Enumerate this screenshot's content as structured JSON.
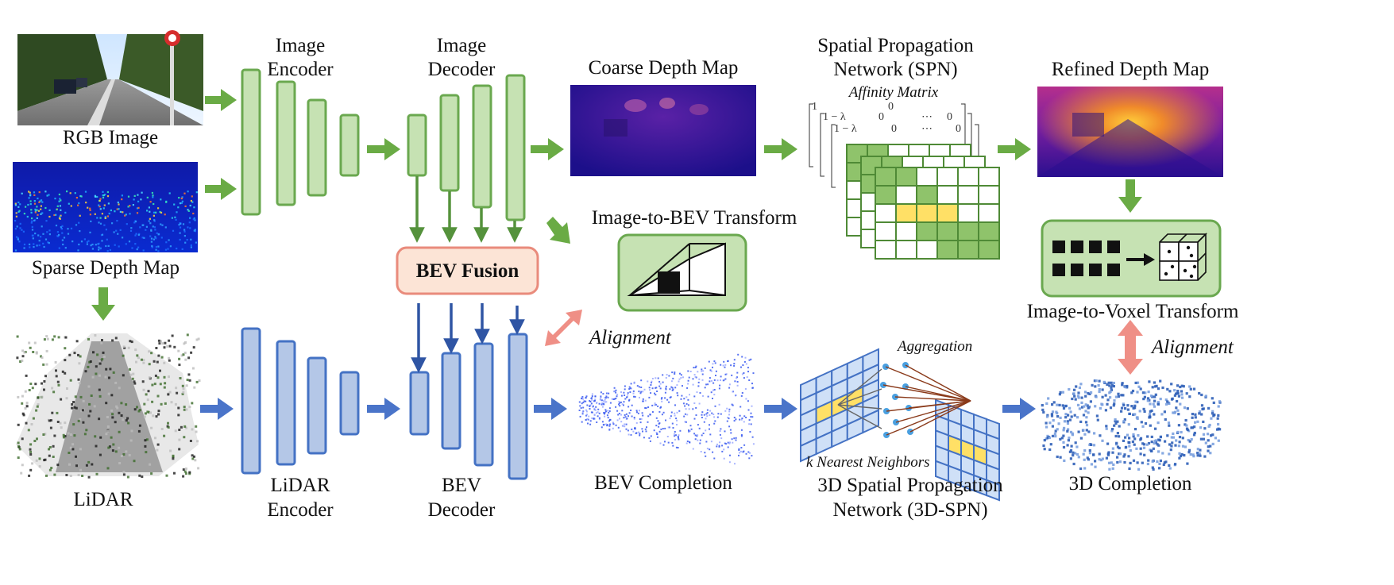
{
  "labels": {
    "rgb_image": "RGB Image",
    "sparse_depth_map": "Sparse Depth Map",
    "lidar": "LiDAR",
    "image_encoder": [
      "Image",
      "Encoder"
    ],
    "image_decoder": [
      "Image",
      "Decoder"
    ],
    "lidar_encoder": [
      "LiDAR",
      "Encoder"
    ],
    "bev_decoder": [
      "BEV",
      "Decoder"
    ],
    "bev_fusion": "BEV Fusion",
    "coarse_depth_map": "Coarse Depth Map",
    "spn": [
      "Spatial Propagation",
      "Network (SPN)"
    ],
    "affinity_matrix": "Affinity Matrix",
    "refined_depth_map": "Refined Depth Map",
    "image_to_bev": "Image-to-BEV Transform",
    "image_to_voxel": "Image-to-Voxel Transform",
    "alignment_left": "Alignment",
    "alignment_right": "Alignment",
    "bev_completion": "BEV Completion",
    "aggregation": "Aggregation",
    "knn": "k Nearest Neighbors",
    "spn3d": [
      "3D Spatial Propagation",
      "Network (3D-SPN)"
    ],
    "completion_3d": "3D Completion"
  },
  "matrix_entries": {
    "row1_a": "1",
    "row1_b": "1 − λ",
    "zero": "0",
    "dots": "⋯"
  },
  "colors": {
    "green_fill": "#c6e2b3",
    "green_stroke": "#6aa84f",
    "green_arrow": "#6aab45",
    "blue_fill": "#b4c7e7",
    "blue_stroke": "#4472c4",
    "blue_arrow": "#4a74c9",
    "dark_blue_arrow": "#2f55a4",
    "pink_fill": "#fce4d6",
    "pink_stroke": "#e98b7c",
    "salmon_arrow": "#ef8f86",
    "yellow": "#ffe066",
    "grid_green": "#8fc36b"
  }
}
